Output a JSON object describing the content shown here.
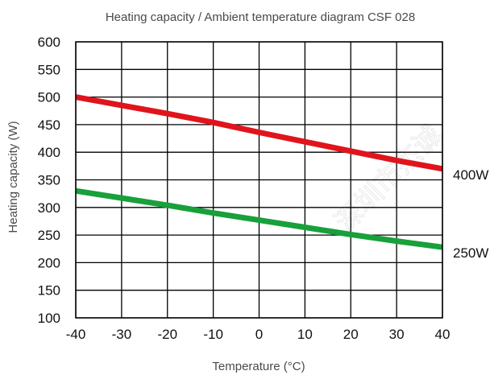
{
  "chart_data": {
    "type": "line",
    "title": "Heating capacity / Ambient temperature diagram CSF 028",
    "xlabel": "Temperature (°C)",
    "ylabel": "Heating capacity (W)",
    "xlim": [
      -40,
      40
    ],
    "ylim": [
      100,
      600
    ],
    "x_ticks": [
      "-40",
      "-30",
      "-20",
      "-10",
      "0",
      "10",
      "20",
      "30",
      "40"
    ],
    "y_ticks": [
      "600",
      "550",
      "500",
      "450",
      "400",
      "350",
      "300",
      "250",
      "200",
      "150",
      "100"
    ],
    "grid": true,
    "series": [
      {
        "name": "400W",
        "color": "#e0141c",
        "x": [
          -40,
          -30,
          -20,
          -10,
          0,
          10,
          20,
          30,
          40
        ],
        "y": [
          500,
          485,
          470,
          454,
          436,
          419,
          402,
          385,
          370
        ]
      },
      {
        "name": "250W",
        "color": "#18a03a",
        "x": [
          -40,
          -30,
          -20,
          -10,
          0,
          10,
          20,
          30,
          40
        ],
        "y": [
          330,
          317,
          304,
          290,
          277,
          264,
          251,
          239,
          228
        ]
      }
    ],
    "watermark": "深圳市杰诚"
  }
}
